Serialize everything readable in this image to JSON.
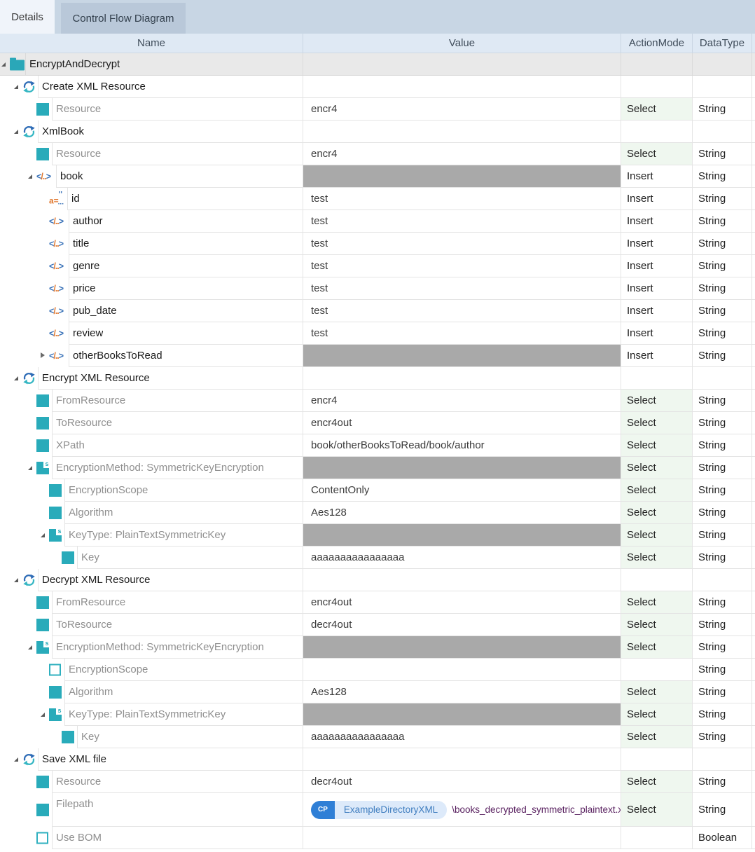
{
  "tabs": {
    "details": "Details",
    "control_flow": "Control Flow Diagram"
  },
  "columns": {
    "name": "Name",
    "value": "Value",
    "action_mode": "ActionMode",
    "data_type": "DataType"
  },
  "colors": {
    "accent_teal": "#29abba",
    "select_green_bg": "#eff7ef",
    "value_gray_bg": "#a9a9a9",
    "token_blue": "#2f7fd6",
    "token_light_blue": "#ddeafa",
    "path_text": "#571e5e",
    "header_bg": "#dfe9f4",
    "tab_strip_bg": "#c8d6e4"
  },
  "filepath": {
    "badge": "CP",
    "token": "ExampleDirectoryXML",
    "path": "\\books_decrypted_symmetric_plaintext.xml"
  },
  "rows": [
    {
      "name": "EncryptAndDecrypt",
      "level": 0,
      "icon": "folder",
      "expander": "open",
      "style": "node",
      "bg": "gray"
    },
    {
      "name": "Create XML Resource",
      "level": 1,
      "icon": "refresh",
      "expander": "open",
      "style": "node"
    },
    {
      "name": "Resource",
      "level": 2,
      "icon": "prop",
      "style": "prop",
      "value": "encr4",
      "action": "Select",
      "datatype": "String"
    },
    {
      "name": "XmlBook",
      "level": 1,
      "icon": "refresh",
      "expander": "open",
      "style": "node"
    },
    {
      "name": "Resource",
      "level": 2,
      "icon": "prop",
      "style": "prop",
      "value": "encr4",
      "action": "Select",
      "datatype": "String"
    },
    {
      "name": "book",
      "level": 2,
      "icon": "xml",
      "expander": "open",
      "style": "node",
      "value_gray": true,
      "action": "Insert",
      "datatype": "String"
    },
    {
      "name": "id",
      "level": 3,
      "icon": "attr",
      "style": "node",
      "value": "test",
      "action": "Insert",
      "datatype": "String"
    },
    {
      "name": "author",
      "level": 3,
      "icon": "xml",
      "style": "node",
      "value": "test",
      "action": "Insert",
      "datatype": "String"
    },
    {
      "name": "title",
      "level": 3,
      "icon": "xml",
      "style": "node",
      "value": "test",
      "action": "Insert",
      "datatype": "String"
    },
    {
      "name": "genre",
      "level": 3,
      "icon": "xml",
      "style": "node",
      "value": "test",
      "action": "Insert",
      "datatype": "String"
    },
    {
      "name": "price",
      "level": 3,
      "icon": "xml",
      "style": "node",
      "value": "test",
      "action": "Insert",
      "datatype": "String"
    },
    {
      "name": "pub_date",
      "level": 3,
      "icon": "xml",
      "style": "node",
      "value": "test",
      "action": "Insert",
      "datatype": "String"
    },
    {
      "name": "review",
      "level": 3,
      "icon": "xml",
      "style": "node",
      "value": "test",
      "action": "Insert",
      "datatype": "String"
    },
    {
      "name": "otherBooksToRead",
      "level": 3,
      "icon": "xml",
      "expander": "closed",
      "style": "node",
      "value_gray": true,
      "action": "Insert",
      "datatype": "String"
    },
    {
      "name": "Encrypt XML Resource",
      "level": 1,
      "icon": "refresh",
      "expander": "open",
      "style": "node"
    },
    {
      "name": "FromResource",
      "level": 2,
      "icon": "prop",
      "style": "prop",
      "value": "encr4",
      "action": "Select",
      "datatype": "String"
    },
    {
      "name": "ToResource",
      "level": 2,
      "icon": "prop",
      "style": "prop",
      "value": "encr4out",
      "action": "Select",
      "datatype": "String"
    },
    {
      "name": "XPath",
      "level": 2,
      "icon": "prop",
      "style": "prop",
      "value": "book/otherBooksToRead/book/author",
      "action": "Select",
      "datatype": "String"
    },
    {
      "name": "EncryptionMethod: SymmetricKeyEncryption",
      "level": 2,
      "icon": "struct",
      "expander": "open",
      "style": "prop",
      "value_gray": true,
      "action": "Select",
      "datatype": "String"
    },
    {
      "name": "EncryptionScope",
      "level": 3,
      "icon": "prop",
      "style": "prop",
      "value": "ContentOnly",
      "action": "Select",
      "datatype": "String"
    },
    {
      "name": "Algorithm",
      "level": 3,
      "icon": "prop",
      "style": "prop",
      "value": "Aes128",
      "action": "Select",
      "datatype": "String"
    },
    {
      "name": "KeyType: PlainTextSymmetricKey",
      "level": 3,
      "icon": "struct",
      "expander": "open",
      "style": "prop",
      "value_gray": true,
      "action": "Select",
      "datatype": "String"
    },
    {
      "name": "Key",
      "level": 4,
      "icon": "prop",
      "style": "prop",
      "value": "aaaaaaaaaaaaaaaa",
      "action": "Select",
      "datatype": "String"
    },
    {
      "name": "Decrypt XML Resource",
      "level": 1,
      "icon": "refresh",
      "expander": "open",
      "style": "node"
    },
    {
      "name": "FromResource",
      "level": 2,
      "icon": "prop",
      "style": "prop",
      "value": "encr4out",
      "action": "Select",
      "datatype": "String"
    },
    {
      "name": "ToResource",
      "level": 2,
      "icon": "prop",
      "style": "prop",
      "value": "decr4out",
      "action": "Select",
      "datatype": "String"
    },
    {
      "name": "EncryptionMethod: SymmetricKeyEncryption",
      "level": 2,
      "icon": "struct",
      "expander": "open",
      "style": "prop",
      "value_gray": true,
      "action": "Select",
      "datatype": "String"
    },
    {
      "name": "EncryptionScope",
      "level": 3,
      "icon": "prop-empty",
      "style": "prop",
      "datatype": "String"
    },
    {
      "name": "Algorithm",
      "level": 3,
      "icon": "prop",
      "style": "prop",
      "value": "Aes128",
      "action": "Select",
      "datatype": "String"
    },
    {
      "name": "KeyType: PlainTextSymmetricKey",
      "level": 3,
      "icon": "struct",
      "expander": "open",
      "style": "prop",
      "value_gray": true,
      "action": "Select",
      "datatype": "String"
    },
    {
      "name": "Key",
      "level": 4,
      "icon": "prop",
      "style": "prop",
      "value": "aaaaaaaaaaaaaaaa",
      "action": "Select",
      "datatype": "String"
    },
    {
      "name": "Save XML file",
      "level": 1,
      "icon": "refresh",
      "expander": "open",
      "style": "node"
    },
    {
      "name": "Resource",
      "level": 2,
      "icon": "prop",
      "style": "prop",
      "value": "decr4out",
      "action": "Select",
      "datatype": "String"
    },
    {
      "name": "Filepath",
      "level": 2,
      "icon": "prop",
      "style": "prop",
      "special": "filepath",
      "action": "Select",
      "datatype": "String",
      "height": 48
    },
    {
      "name": "Use BOM",
      "level": 2,
      "icon": "prop-empty",
      "style": "prop",
      "datatype": "Boolean"
    }
  ]
}
